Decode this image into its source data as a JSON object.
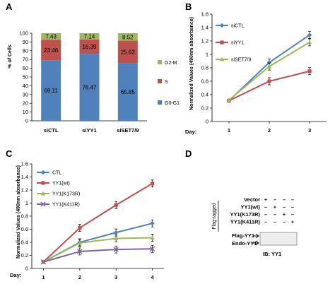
{
  "chart_data": [
    {
      "panel": "A",
      "type": "bar",
      "ylabel": "% of Cells",
      "ylim": [
        0,
        100
      ],
      "yticks": [
        "0",
        "10",
        "20",
        "30",
        "40",
        "50",
        "60",
        "70",
        "80",
        "90",
        "100"
      ],
      "categories": [
        "siCTL",
        "siYY1",
        "siSET7/9"
      ],
      "series": [
        {
          "name": "G0-G1",
          "color": "#4f81bd",
          "values": [
            69.11,
            76.47,
            65.85
          ],
          "labels": [
            "69.11",
            "76.47",
            "65.85"
          ]
        },
        {
          "name": "S",
          "color": "#c0504d",
          "values": [
            23.46,
            16.39,
            25.63
          ],
          "labels": [
            "23.46",
            "16.39",
            "25.63"
          ]
        },
        {
          "name": "G2-M",
          "color": "#9bbb59",
          "values": [
            7.43,
            7.14,
            8.52
          ],
          "labels": [
            "7.43",
            "7.14",
            "8.52"
          ]
        }
      ],
      "legend_order": [
        "G2-M",
        "S",
        "G0-G1"
      ],
      "legend": "right"
    },
    {
      "panel": "B",
      "type": "line",
      "ylabel": "Normalized Values (490nm absorbance)",
      "xprefix": "Day:",
      "x": [
        1,
        2,
        3
      ],
      "xticks": [
        "1",
        "2",
        "3"
      ],
      "ylim": [
        0,
        1.6
      ],
      "yticks": [
        "0",
        "0.2",
        "0.4",
        "0.6",
        "0.8",
        "1",
        "1.2",
        "1.4",
        "1.6"
      ],
      "series": [
        {
          "name": "siCTL",
          "color": "#4f81bd",
          "marker": "diamond",
          "values": [
            0.31,
            0.88,
            1.29
          ]
        },
        {
          "name": "siYY1",
          "color": "#c0504d",
          "marker": "square",
          "values": [
            0.31,
            0.6,
            0.75
          ]
        },
        {
          "name": "siSET7/9",
          "color": "#9bbb59",
          "marker": "triangle",
          "values": [
            0.32,
            0.82,
            1.18
          ]
        }
      ],
      "legend": "top-left"
    },
    {
      "panel": "C",
      "type": "line",
      "ylabel": "Normalized Values (490nm absorbance)",
      "xprefix": "Day:",
      "x": [
        1,
        2,
        3,
        4
      ],
      "xticks": [
        "1",
        "2",
        "3",
        "4"
      ],
      "ylim": [
        0,
        1.6
      ],
      "yticks": [
        "0",
        "0.2",
        "0.4",
        "0.6",
        "0.8",
        "1",
        "1.2",
        "1.4",
        "1.6"
      ],
      "series": [
        {
          "name": "CTL",
          "color": "#4f81bd",
          "marker": "diamond",
          "values": [
            0.1,
            0.4,
            0.55,
            0.69
          ]
        },
        {
          "name": "YY1(wt)",
          "color": "#c0504d",
          "marker": "square",
          "values": [
            0.1,
            0.62,
            0.97,
            1.3
          ]
        },
        {
          "name": "YY1(K173R)",
          "color": "#9bbb59",
          "marker": "triangle",
          "values": [
            0.1,
            0.39,
            0.46,
            0.47
          ]
        },
        {
          "name": "YY1(K411R)",
          "color": "#8064a2",
          "marker": "cross",
          "values": [
            0.1,
            0.26,
            0.29,
            0.3
          ]
        }
      ],
      "legend": "top-left"
    },
    {
      "panel": "D",
      "type": "table",
      "rows": [
        {
          "label": "Vector",
          "marks": [
            "+",
            "–",
            "–",
            "–"
          ]
        },
        {
          "label": "YY1(wt)",
          "marks": [
            "–",
            "+",
            "–",
            "–"
          ]
        },
        {
          "label": "YY1(K173R)",
          "marks": [
            "–",
            "–",
            "+",
            "–"
          ]
        },
        {
          "label": "YY1(K411R)",
          "marks": [
            "–",
            "–",
            "–",
            "+"
          ]
        }
      ],
      "side_label": "Flag-tagged",
      "bands": [
        "Flag-YY1",
        "Endo-YY1"
      ],
      "caption": "IB: YY1"
    }
  ],
  "panel_letters": [
    "A",
    "B",
    "C",
    "D"
  ]
}
